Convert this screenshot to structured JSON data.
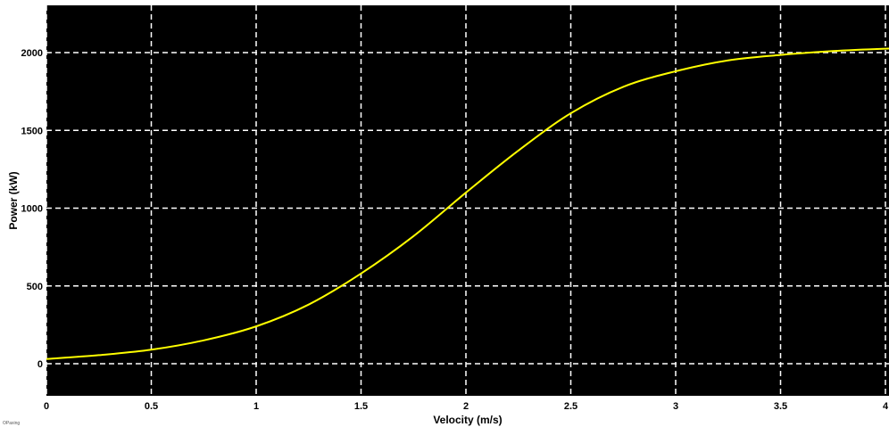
{
  "chart_data": {
    "type": "line",
    "title": "",
    "xlabel": "Velocity (m/s)",
    "ylabel": "Power (kW)",
    "xlim": [
      0,
      4
    ],
    "ylim": [
      -220,
      2300
    ],
    "x_ticks": [
      0,
      0.5,
      1,
      1.5,
      2,
      2.5,
      3,
      3.5,
      4
    ],
    "x_tick_labels": [
      "0",
      "0.5",
      "1",
      "1.5",
      "2",
      "2.5",
      "3",
      "3.5",
      "4"
    ],
    "y_ticks": [
      0,
      500,
      1000,
      1500,
      2000
    ],
    "y_tick_labels": [
      "0",
      "500",
      "1000",
      "1500",
      "2000"
    ],
    "grid": true,
    "legend": "none",
    "series": [
      {
        "color": "#ffff00",
        "x": [
          0,
          0.25,
          0.5,
          0.75,
          1,
          1.25,
          1.5,
          1.75,
          2,
          2.25,
          2.5,
          2.75,
          3,
          3.25,
          3.5,
          3.75,
          4,
          4.25
        ],
        "y": [
          30,
          55,
          90,
          150,
          240,
          380,
          580,
          820,
          1100,
          1370,
          1610,
          1780,
          1880,
          1950,
          1985,
          2010,
          2025,
          2035
        ]
      }
    ]
  },
  "colors": {
    "plot_background": "#000000",
    "grid": "#ffffff",
    "line": "#ffff00",
    "figure_background": "#ffffff"
  },
  "watermark_text": "OPaxing"
}
